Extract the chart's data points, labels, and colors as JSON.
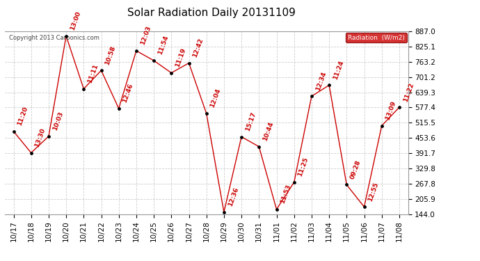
{
  "title": "Solar Radiation Daily 20131109",
  "copyright": "Copyright 2013 Carbonics.com",
  "legend_label": "Radiation  (W/m2)",
  "x_labels": [
    "10/17",
    "10/18",
    "10/19",
    "10/20",
    "10/21",
    "10/22",
    "10/23",
    "10/24",
    "10/25",
    "10/26",
    "10/27",
    "10/28",
    "10/29",
    "10/30",
    "10/31",
    "11/01",
    "11/02",
    "11/03",
    "11/04",
    "11/05",
    "11/06",
    "11/07",
    "11/08"
  ],
  "y_values": [
    480,
    393,
    460,
    868,
    653,
    728,
    573,
    808,
    768,
    718,
    758,
    553,
    152,
    458,
    418,
    163,
    273,
    623,
    668,
    263,
    173,
    503,
    578
  ],
  "time_labels": [
    "11:20",
    "13:30",
    "10:03",
    "13:00",
    "11:11",
    "10:58",
    "12:46",
    "12:03",
    "11:54",
    "11:19",
    "12:42",
    "12:04",
    "12:36",
    "15:17",
    "10:44",
    "11:53",
    "11:25",
    "12:34",
    "11:24",
    "09:28",
    "12:55",
    "13:09",
    "11:22"
  ],
  "y_min": 144.0,
  "y_max": 887.0,
  "y_ticks": [
    144.0,
    205.9,
    267.8,
    329.8,
    391.7,
    453.6,
    515.5,
    577.4,
    639.3,
    701.2,
    763.2,
    825.1,
    887.0
  ],
  "line_color": "#cc0000",
  "marker_color": "#000000",
  "bg_color": "#ffffff",
  "grid_color": "#cccccc",
  "legend_bg": "#cc0000",
  "legend_text_color": "#ffffff",
  "title_fontsize": 11,
  "label_fontsize": 6.5,
  "tick_fontsize": 7.5
}
